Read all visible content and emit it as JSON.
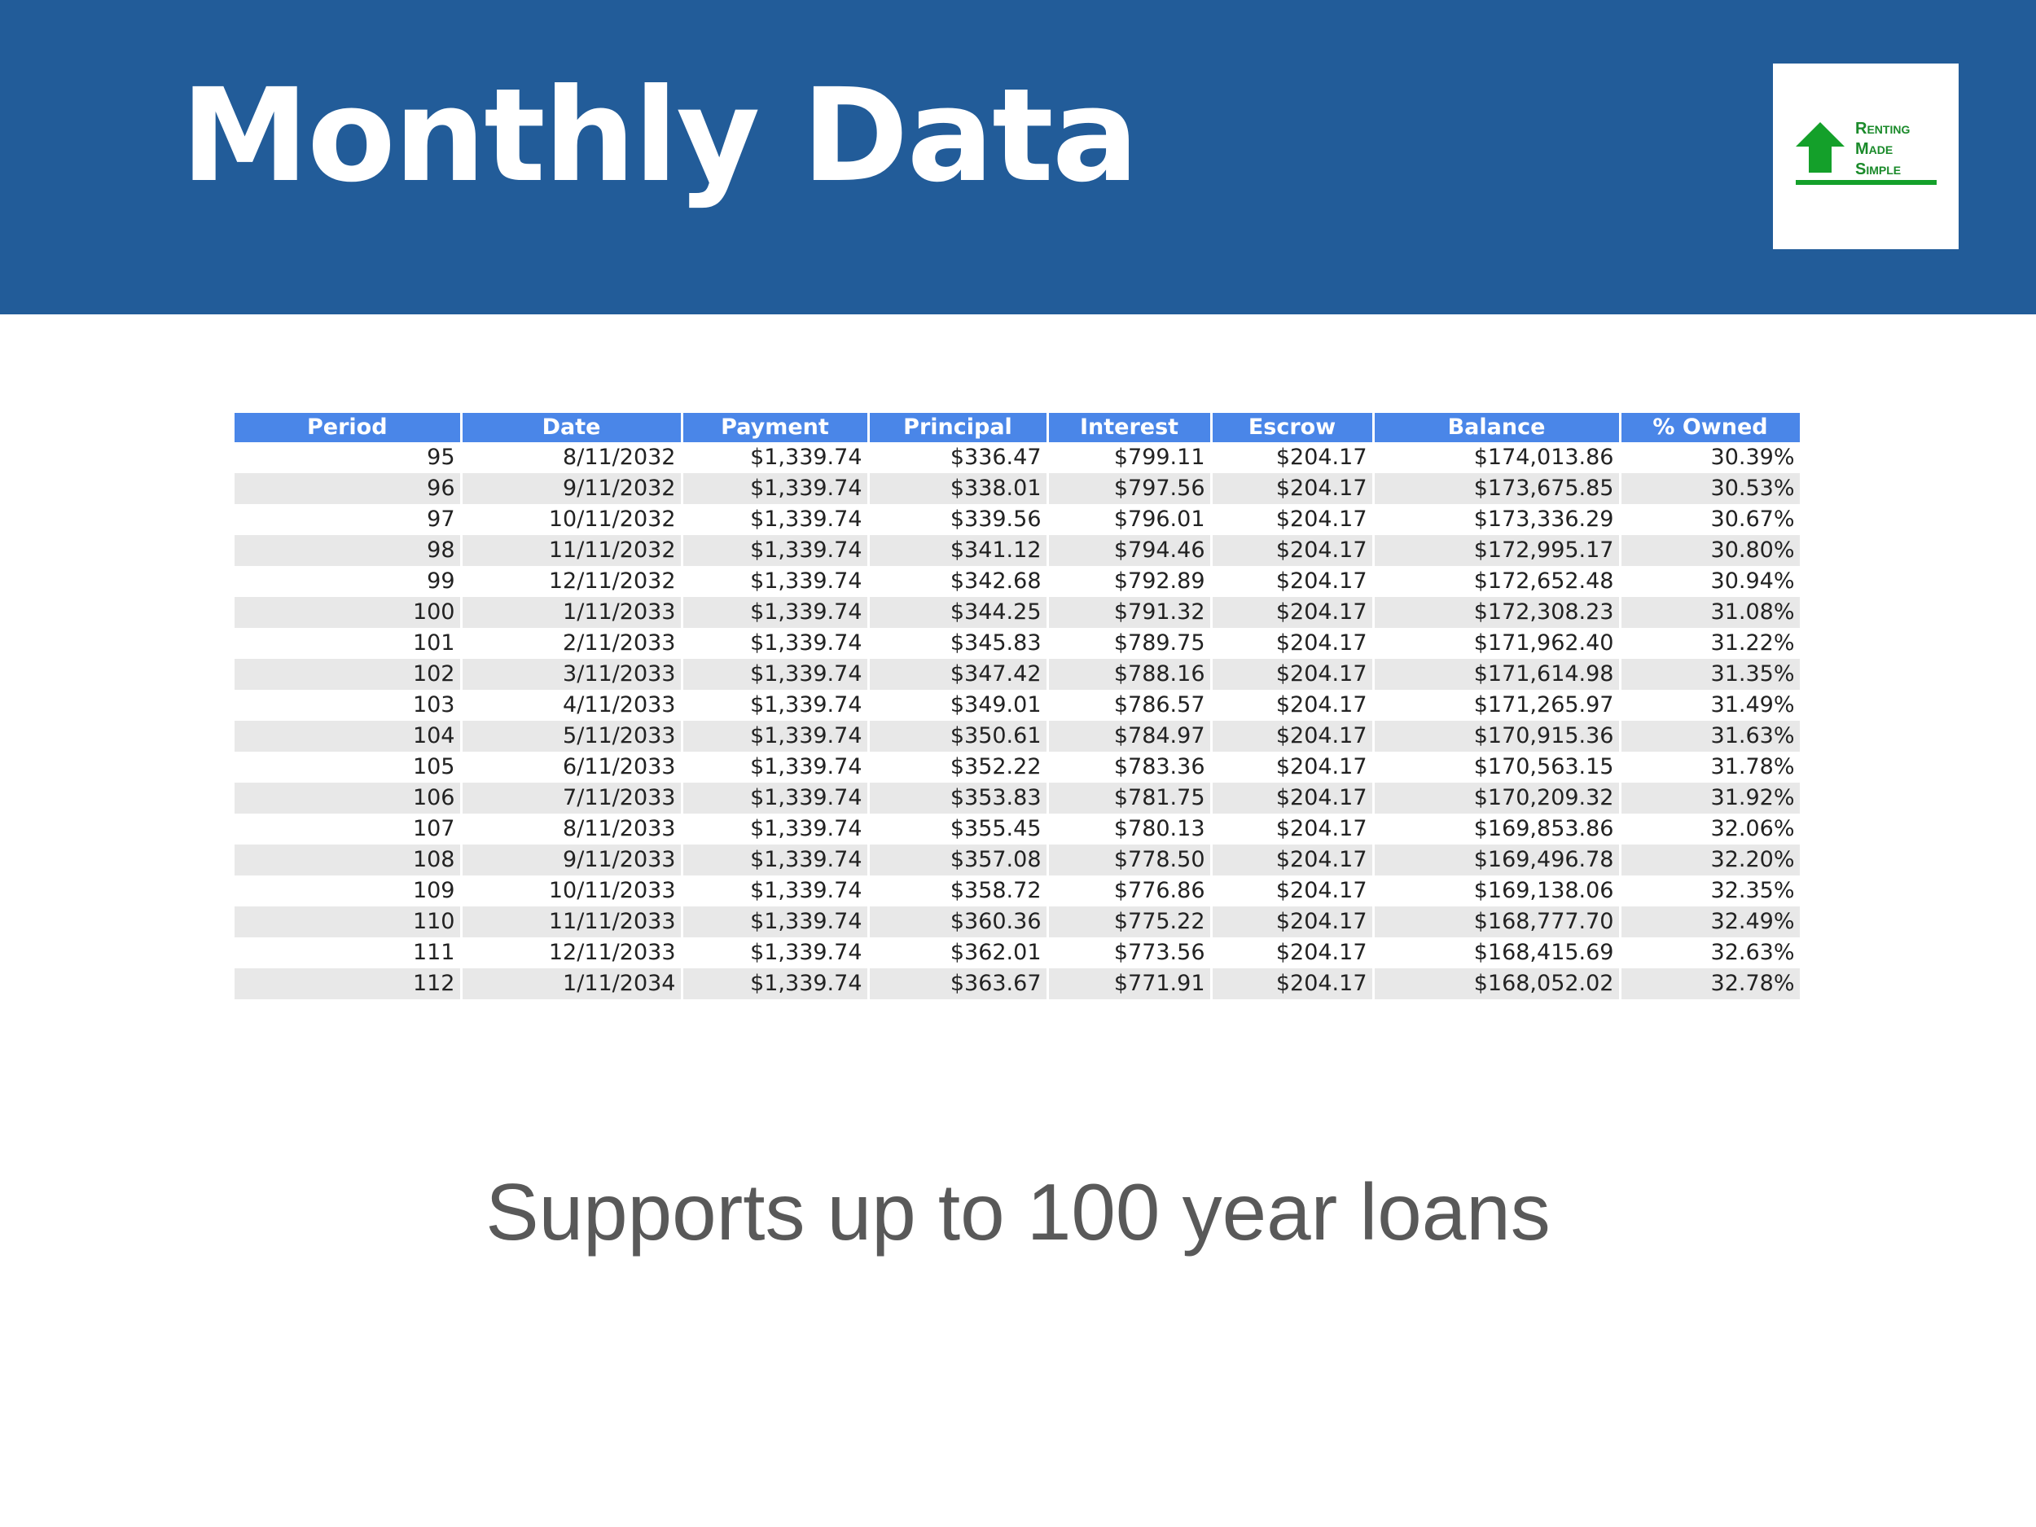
{
  "header": {
    "title": "Monthly Data",
    "logo": [
      "Renting",
      "Made",
      "Simple"
    ]
  },
  "table": {
    "columns": [
      "Period",
      "Date",
      "Payment",
      "Principal",
      "Interest",
      "Escrow",
      "Balance",
      "% Owned"
    ],
    "rows": [
      [
        "95",
        "8/11/2032",
        "$1,339.74",
        "$336.47",
        "$799.11",
        "$204.17",
        "$174,013.86",
        "30.39%"
      ],
      [
        "96",
        "9/11/2032",
        "$1,339.74",
        "$338.01",
        "$797.56",
        "$204.17",
        "$173,675.85",
        "30.53%"
      ],
      [
        "97",
        "10/11/2032",
        "$1,339.74",
        "$339.56",
        "$796.01",
        "$204.17",
        "$173,336.29",
        "30.67%"
      ],
      [
        "98",
        "11/11/2032",
        "$1,339.74",
        "$341.12",
        "$794.46",
        "$204.17",
        "$172,995.17",
        "30.80%"
      ],
      [
        "99",
        "12/11/2032",
        "$1,339.74",
        "$342.68",
        "$792.89",
        "$204.17",
        "$172,652.48",
        "30.94%"
      ],
      [
        "100",
        "1/11/2033",
        "$1,339.74",
        "$344.25",
        "$791.32",
        "$204.17",
        "$172,308.23",
        "31.08%"
      ],
      [
        "101",
        "2/11/2033",
        "$1,339.74",
        "$345.83",
        "$789.75",
        "$204.17",
        "$171,962.40",
        "31.22%"
      ],
      [
        "102",
        "3/11/2033",
        "$1,339.74",
        "$347.42",
        "$788.16",
        "$204.17",
        "$171,614.98",
        "31.35%"
      ],
      [
        "103",
        "4/11/2033",
        "$1,339.74",
        "$349.01",
        "$786.57",
        "$204.17",
        "$171,265.97",
        "31.49%"
      ],
      [
        "104",
        "5/11/2033",
        "$1,339.74",
        "$350.61",
        "$784.97",
        "$204.17",
        "$170,915.36",
        "31.63%"
      ],
      [
        "105",
        "6/11/2033",
        "$1,339.74",
        "$352.22",
        "$783.36",
        "$204.17",
        "$170,563.15",
        "31.78%"
      ],
      [
        "106",
        "7/11/2033",
        "$1,339.74",
        "$353.83",
        "$781.75",
        "$204.17",
        "$170,209.32",
        "31.92%"
      ],
      [
        "107",
        "8/11/2033",
        "$1,339.74",
        "$355.45",
        "$780.13",
        "$204.17",
        "$169,853.86",
        "32.06%"
      ],
      [
        "108",
        "9/11/2033",
        "$1,339.74",
        "$357.08",
        "$778.50",
        "$204.17",
        "$169,496.78",
        "32.20%"
      ],
      [
        "109",
        "10/11/2033",
        "$1,339.74",
        "$358.72",
        "$776.86",
        "$204.17",
        "$169,138.06",
        "32.35%"
      ],
      [
        "110",
        "11/11/2033",
        "$1,339.74",
        "$360.36",
        "$775.22",
        "$204.17",
        "$168,777.70",
        "32.49%"
      ],
      [
        "111",
        "12/11/2033",
        "$1,339.74",
        "$362.01",
        "$773.56",
        "$204.17",
        "$168,415.69",
        "32.63%"
      ],
      [
        "112",
        "1/11/2034",
        "$1,339.74",
        "$363.67",
        "$771.91",
        "$204.17",
        "$168,052.02",
        "32.78%"
      ]
    ]
  },
  "caption": "Supports up to 100 year loans"
}
